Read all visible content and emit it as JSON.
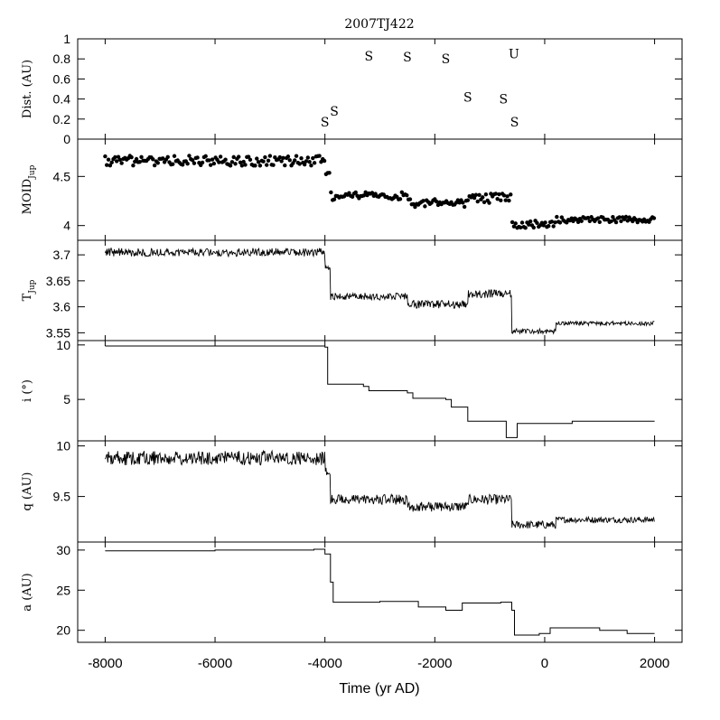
{
  "chart_data": {
    "title": "2007TJ422",
    "type": "line",
    "xlabel": "Time (yr AD)",
    "xlim": [
      -8500,
      2500
    ],
    "xticks": [
      -8000,
      -6000,
      -4000,
      -2000,
      0,
      2000
    ],
    "panels": [
      {
        "id": "dist",
        "type": "scatter",
        "ylabel": "Dist. (AU)",
        "ylim": [
          0,
          1
        ],
        "yticks": [
          0,
          0.2,
          0.4,
          0.6,
          0.8,
          1
        ],
        "yticklabels": [
          "0",
          "0.2",
          "0.4",
          "0.6",
          "0.8",
          "1"
        ],
        "encounters": [
          {
            "t": -4000,
            "d": 0.17,
            "label": "S"
          },
          {
            "t": -3830,
            "d": 0.28,
            "label": "S"
          },
          {
            "t": -3200,
            "d": 0.83,
            "label": "S"
          },
          {
            "t": -2500,
            "d": 0.82,
            "label": "S"
          },
          {
            "t": -1800,
            "d": 0.8,
            "label": "S"
          },
          {
            "t": -1400,
            "d": 0.42,
            "label": "S"
          },
          {
            "t": -750,
            "d": 0.4,
            "label": "S"
          },
          {
            "t": -550,
            "d": 0.17,
            "label": "S"
          },
          {
            "t": -560,
            "d": 0.85,
            "label": "U"
          }
        ]
      },
      {
        "id": "moid",
        "type": "scatter",
        "ylabel": "MOID",
        "ylabel_sub": "Jup",
        "ylim": [
          3.85,
          4.88
        ],
        "yticks": [
          4,
          4.5
        ],
        "yticklabels": [
          "4",
          "4.5"
        ],
        "segments": [
          {
            "from": -8000,
            "to": -4000,
            "mean": 4.66,
            "noise": 0.05
          },
          {
            "from": -4000,
            "to": -3900,
            "mean": 4.55,
            "noise": 0.04
          },
          {
            "from": -3900,
            "to": -2500,
            "mean": 4.3,
            "noise": 0.04
          },
          {
            "from": -2500,
            "to": -1400,
            "mean": 4.23,
            "noise": 0.04
          },
          {
            "from": -1400,
            "to": -600,
            "mean": 4.28,
            "noise": 0.05
          },
          {
            "from": -600,
            "to": 200,
            "mean": 4.01,
            "noise": 0.04
          },
          {
            "from": 200,
            "to": 2000,
            "mean": 4.06,
            "noise": 0.03
          }
        ]
      },
      {
        "id": "tjup",
        "type": "line",
        "ylabel": "T",
        "ylabel_sub": "Jup",
        "ylim": [
          3.535,
          3.728
        ],
        "yticks": [
          3.55,
          3.6,
          3.65,
          3.7
        ],
        "yticklabels": [
          "3.55",
          "3.6",
          "3.65",
          "3.7"
        ],
        "segments": [
          {
            "from": -8000,
            "to": -4000,
            "mean": 3.705,
            "noise": 0.008
          },
          {
            "from": -4000,
            "to": -3900,
            "mean": 3.675,
            "noise": 0.004
          },
          {
            "from": -3900,
            "to": -2500,
            "mean": 3.62,
            "noise": 0.007
          },
          {
            "from": -2500,
            "to": -1400,
            "mean": 3.605,
            "noise": 0.008
          },
          {
            "from": -1400,
            "to": -600,
            "mean": 3.625,
            "noise": 0.008
          },
          {
            "from": -600,
            "to": 200,
            "mean": 3.553,
            "noise": 0.005
          },
          {
            "from": 200,
            "to": 2000,
            "mean": 3.568,
            "noise": 0.004
          }
        ]
      },
      {
        "id": "incl",
        "type": "line",
        "ylabel": "i (°)",
        "ylim": [
          1.2,
          10.4
        ],
        "yticks": [
          5,
          10
        ],
        "yticklabels": [
          "5",
          "10"
        ],
        "steps": [
          [
            -8000,
            9.9
          ],
          [
            -4000,
            9.8
          ],
          [
            -3950,
            6.4
          ],
          [
            -3300,
            6.2
          ],
          [
            -3200,
            5.8
          ],
          [
            -2500,
            5.6
          ],
          [
            -2400,
            5.1
          ],
          [
            -1800,
            5.0
          ],
          [
            -1700,
            4.3
          ],
          [
            -1400,
            3.0
          ],
          [
            -700,
            1.5
          ],
          [
            -500,
            2.8
          ],
          [
            0,
            2.8
          ],
          [
            500,
            3.0
          ],
          [
            2000,
            3.0
          ]
        ]
      },
      {
        "id": "q",
        "type": "line",
        "ylabel": "q (AU)",
        "ylim": [
          9.05,
          10.05
        ],
        "yticks": [
          9.5,
          10
        ],
        "yticklabels": [
          "9.5",
          "10"
        ],
        "segments": [
          {
            "from": -8000,
            "to": -4000,
            "mean": 9.88,
            "noise": 0.07
          },
          {
            "from": -4000,
            "to": -3900,
            "mean": 9.75,
            "noise": 0.04
          },
          {
            "from": -3900,
            "to": -2500,
            "mean": 9.47,
            "noise": 0.05
          },
          {
            "from": -2500,
            "to": -1400,
            "mean": 9.4,
            "noise": 0.05
          },
          {
            "from": -1400,
            "to": -600,
            "mean": 9.47,
            "noise": 0.05
          },
          {
            "from": -600,
            "to": 200,
            "mean": 9.22,
            "noise": 0.04
          },
          {
            "from": 200,
            "to": 2000,
            "mean": 9.27,
            "noise": 0.03
          }
        ]
      },
      {
        "id": "a",
        "type": "line",
        "ylabel": "a (AU)",
        "ylim": [
          18.5,
          31
        ],
        "yticks": [
          20,
          25,
          30
        ],
        "yticklabels": [
          "20",
          "25",
          "30"
        ],
        "steps": [
          [
            -8000,
            29.9
          ],
          [
            -6000,
            30.0
          ],
          [
            -4200,
            30.1
          ],
          [
            -4000,
            29.5
          ],
          [
            -3900,
            26.0
          ],
          [
            -3850,
            23.5
          ],
          [
            -3000,
            23.6
          ],
          [
            -2300,
            22.9
          ],
          [
            -1800,
            22.5
          ],
          [
            -1500,
            23.4
          ],
          [
            -800,
            23.5
          ],
          [
            -600,
            22.5
          ],
          [
            -550,
            19.4
          ],
          [
            -100,
            19.6
          ],
          [
            100,
            20.3
          ],
          [
            1000,
            20.0
          ],
          [
            1500,
            19.6
          ],
          [
            2000,
            19.6
          ]
        ]
      }
    ]
  }
}
